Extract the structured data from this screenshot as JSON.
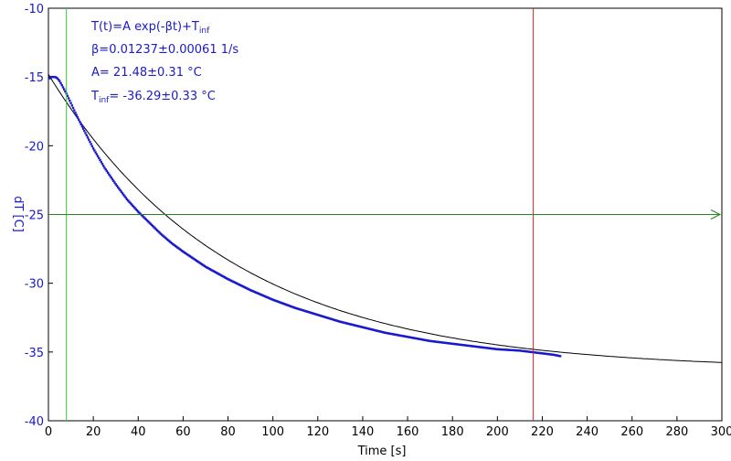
{
  "chart_data": {
    "type": "scatter",
    "xlabel": "Time [s]",
    "ylabel": "dT [C]",
    "xlim": [
      0,
      300
    ],
    "ylim": [
      -40,
      -10
    ],
    "x_ticks": [
      0,
      20,
      40,
      60,
      80,
      100,
      120,
      140,
      160,
      180,
      200,
      220,
      240,
      260,
      280,
      300
    ],
    "y_ticks": [
      -10,
      -15,
      -20,
      -25,
      -30,
      -35,
      -40
    ],
    "grid": false,
    "colors": {
      "data": "#1a1acc",
      "fit": "#000000",
      "axis_text": "#1a1acc",
      "start_cursor": "#33cc33",
      "end_cursor": "#cc2222",
      "baseline": "#228822"
    },
    "annotations": {
      "formula_main": "T(t)=A exp(-βt)+T",
      "formula_sub": "inf",
      "beta": "β=0.01237±0.00061 1/s",
      "amplitude": "A= 21.48±0.31 °C",
      "tinf_prefix": "T",
      "tinf_sub": "inf",
      "tinf_value": "= -36.29±0.33 °C"
    },
    "fit": {
      "A": 21.48,
      "beta": 0.01237,
      "T_inf": -36.29,
      "x_range": [
        0,
        300
      ]
    },
    "cursors": {
      "start_x": 8,
      "end_x": 216,
      "baseline_y": -25
    },
    "series": [
      {
        "kind": "measured",
        "x": [
          0.5,
          1,
          2,
          3,
          4,
          5,
          6,
          8,
          10,
          12,
          15,
          20,
          25,
          30,
          35,
          40,
          45,
          50,
          55,
          60,
          70,
          80,
          90,
          100,
          110,
          120,
          130,
          140,
          150,
          160,
          170,
          180,
          190,
          200,
          210,
          215,
          220,
          225,
          228
        ],
        "y": [
          -15.1,
          -15.0,
          -15.0,
          -15.0,
          -15.1,
          -15.3,
          -15.6,
          -16.2,
          -16.9,
          -17.6,
          -18.6,
          -20.2,
          -21.6,
          -22.8,
          -23.9,
          -24.8,
          -25.6,
          -26.4,
          -27.1,
          -27.7,
          -28.8,
          -29.7,
          -30.5,
          -31.2,
          -31.8,
          -32.3,
          -32.8,
          -33.2,
          -33.6,
          -33.9,
          -34.2,
          -34.4,
          -34.6,
          -34.8,
          -34.9,
          -35.0,
          -35.1,
          -35.2,
          -35.3
        ]
      }
    ]
  }
}
